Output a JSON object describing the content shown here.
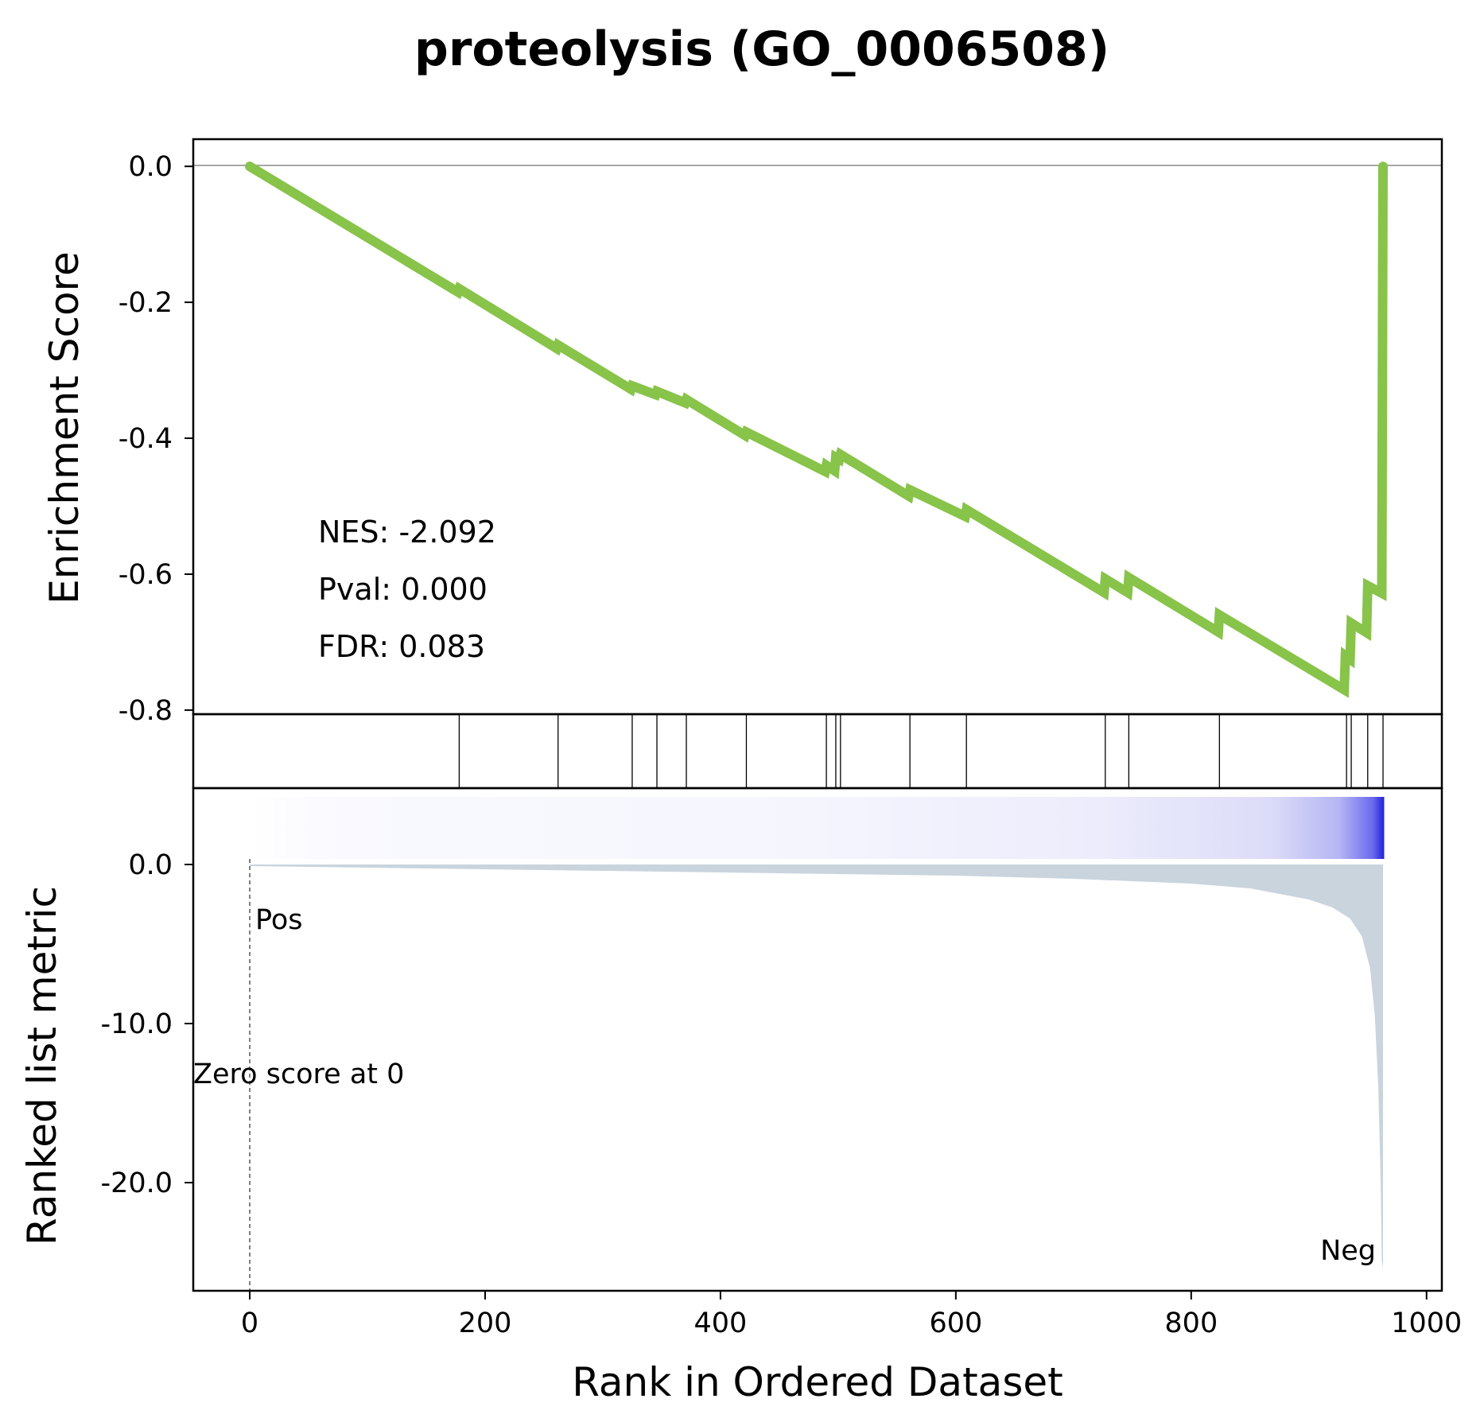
{
  "chart_data": {
    "type": "line",
    "title": "proteolysis (GO_0006508)",
    "xlabel": "Rank in Ordered Dataset",
    "xlim": [
      -48,
      1013
    ],
    "x_ticks": [
      "0",
      "200",
      "400",
      "600",
      "800",
      "1000"
    ],
    "panels": {
      "enrichment": {
        "ylabel": "Enrichment Score",
        "ylim": [
          -0.806,
          0.04
        ],
        "y_ticks": [
          "0.0",
          "-0.2",
          "-0.4",
          "-0.6",
          "-0.8"
        ],
        "line_color": "#88c34a",
        "series": [
          {
            "x": [
              0,
              177,
              178,
              261,
              262,
              324,
              325,
              345,
              346,
              370,
              371,
              421,
              422,
              489,
              490,
              497,
              498,
              501,
              502,
              560,
              561,
              608,
              609,
              726,
              727,
              746,
              747,
              823,
              824,
              930,
              931,
              935,
              936,
              949,
              950,
              962,
              963
            ],
            "y": [
              0.0,
              -0.185,
              -0.18,
              -0.268,
              -0.263,
              -0.328,
              -0.323,
              -0.336,
              -0.331,
              -0.348,
              -0.343,
              -0.396,
              -0.391,
              -0.449,
              -0.44,
              -0.448,
              -0.428,
              -0.431,
              -0.424,
              -0.485,
              -0.476,
              -0.515,
              -0.505,
              -0.627,
              -0.607,
              -0.627,
              -0.605,
              -0.685,
              -0.66,
              -0.77,
              -0.72,
              -0.725,
              -0.672,
              -0.686,
              -0.617,
              -0.628,
              0.0
            ]
          }
        ]
      },
      "hits": {
        "positions": [
          178,
          262,
          325,
          346,
          371,
          422,
          490,
          498,
          502,
          561,
          609,
          727,
          747,
          824,
          932,
          936,
          950,
          963
        ]
      },
      "ranked_metric": {
        "ylabel": "Ranked list metric",
        "ylim": [
          -26.8,
          4.8
        ],
        "y_ticks": [
          "0.0",
          "-10.0",
          "-20.0"
        ],
        "fill_color": "#c9d4dd",
        "n_genes": 964,
        "x": [
          0,
          100,
          200,
          300,
          400,
          500,
          600,
          700,
          800,
          850,
          900,
          920,
          935,
          945,
          952,
          956,
          959,
          961,
          962,
          963
        ],
        "y": [
          -0.1,
          -0.2,
          -0.3,
          -0.4,
          -0.5,
          -0.6,
          -0.7,
          -0.9,
          -1.2,
          -1.5,
          -2.2,
          -2.7,
          -3.4,
          -4.5,
          -6.5,
          -9.5,
          -14.0,
          -20.0,
          -25.0,
          -25.3
        ],
        "pos_label": "Pos",
        "neg_label": "Neg",
        "pos_color": "#ff0000",
        "neg_color": "#0000ff",
        "zero_score_label": "Zero score at 0",
        "zero_rank": 0
      }
    },
    "stats": {
      "nes": "NES: -2.092",
      "pval": "Pval: 0.000",
      "fdr": "FDR: 0.083"
    }
  }
}
